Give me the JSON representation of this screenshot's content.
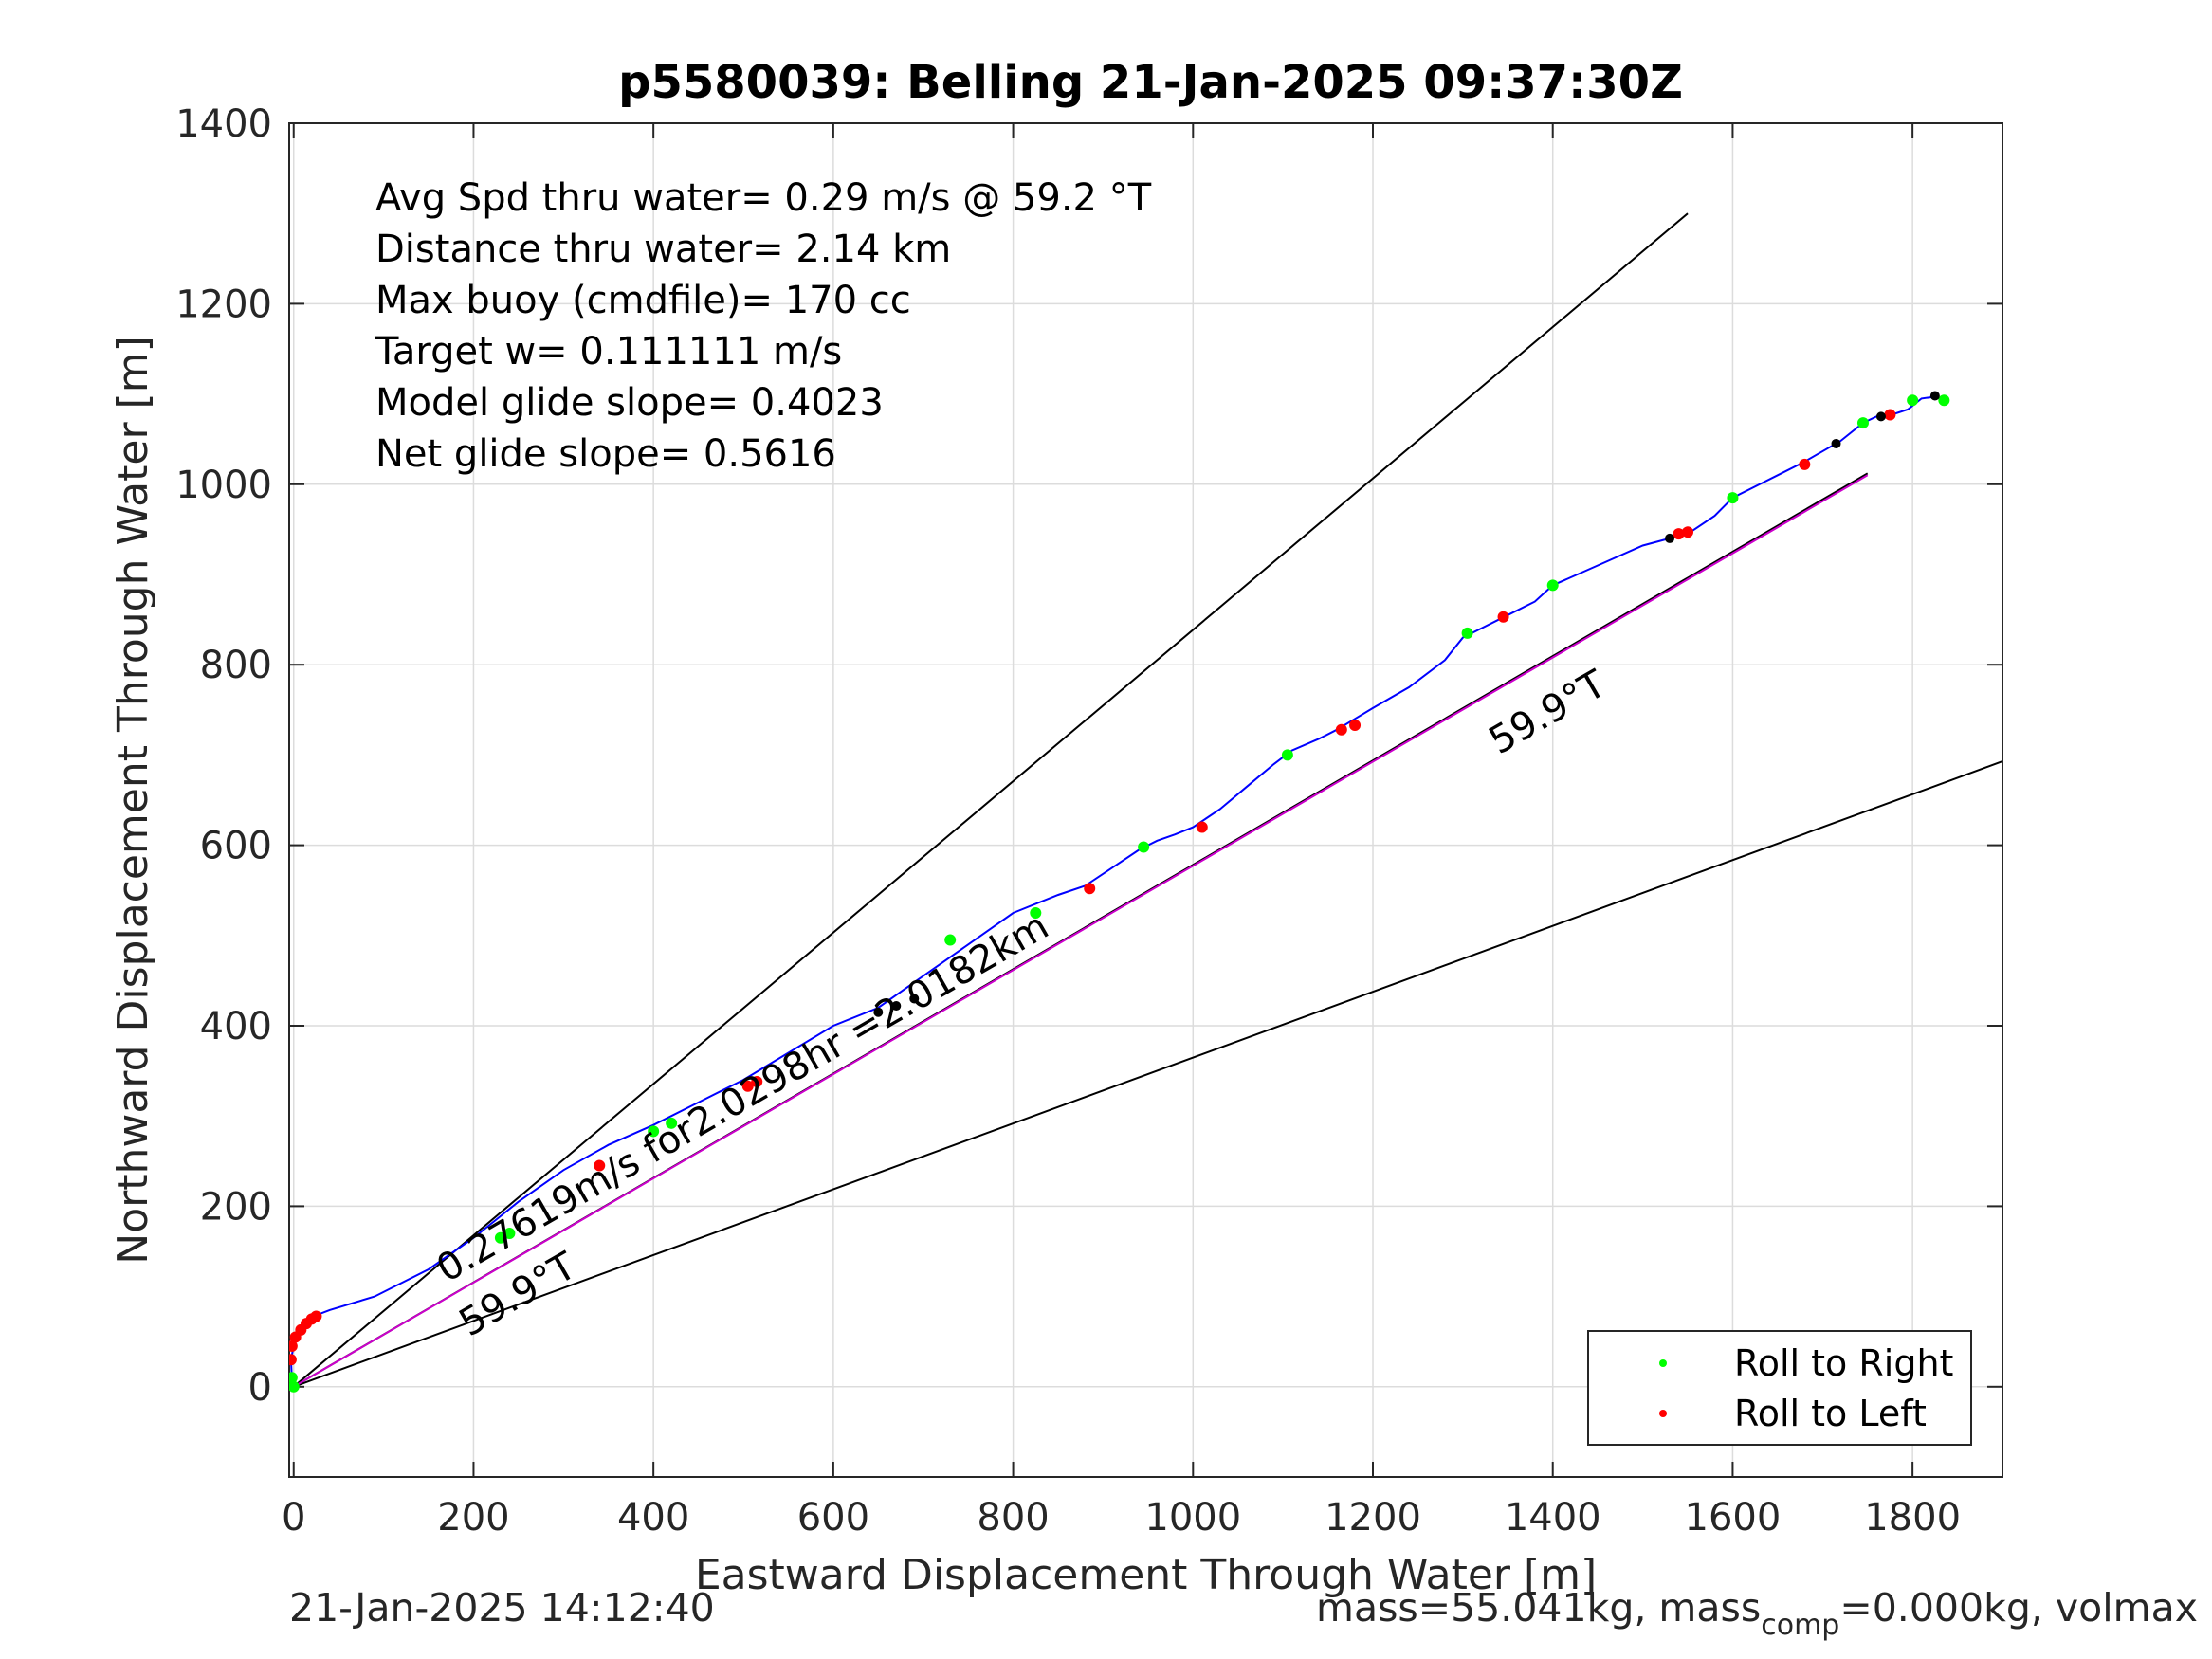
{
  "chart_data": {
    "type": "line",
    "title": "p5580039: Belling 21-Jan-2025 09:37:30Z",
    "xlabel": "Eastward Displacement Through Water [m]",
    "ylabel": "Northward Displacement Through Water [m]",
    "xlim": [
      -5,
      1900
    ],
    "ylim": [
      -100,
      1400
    ],
    "xticks": [
      0,
      200,
      400,
      600,
      800,
      1000,
      1200,
      1400,
      1600,
      1800
    ],
    "yticks": [
      0,
      200,
      400,
      600,
      800,
      1000,
      1200,
      1400
    ],
    "grid": true,
    "legend_position": "bottom-right",
    "annotations": [
      "Avg Spd thru water=  0.29 m/s @  59.2 °T",
      "Distance thru water=  2.14 km",
      "Max buoy (cmdfile)= 170 cc",
      "Target w= 0.111111 m/s",
      "Model glide slope= 0.4023",
      "Net glide slope= 0.5616"
    ],
    "heading_label_upper": "59.9°T",
    "heading_label_lower": "59.9°T",
    "drift_label": "0.27619m/s for2.0298hr =2.0182km",
    "series": [
      {
        "name": "track",
        "color": "#0000ff",
        "x": [
          0,
          -2,
          -3,
          0,
          6,
          14,
          22,
          40,
          90,
          150,
          200,
          250,
          300,
          350,
          400,
          450,
          500,
          550,
          600,
          650,
          700,
          750,
          800,
          850,
          880,
          910,
          940,
          960,
          980,
          1000,
          1030,
          1060,
          1090,
          1110,
          1140,
          1160,
          1180,
          1200,
          1240,
          1280,
          1300,
          1320,
          1350,
          1380,
          1400,
          1450,
          1500,
          1530,
          1550,
          1580,
          1600,
          1650,
          1680,
          1720,
          1745,
          1760,
          1780,
          1795,
          1810,
          1825,
          1835
        ],
        "y": [
          0,
          10,
          30,
          45,
          58,
          70,
          78,
          85,
          100,
          130,
          165,
          205,
          240,
          268,
          290,
          315,
          340,
          370,
          400,
          420,
          455,
          490,
          525,
          545,
          555,
          575,
          595,
          605,
          612,
          620,
          640,
          665,
          690,
          705,
          718,
          728,
          740,
          752,
          775,
          805,
          830,
          840,
          855,
          870,
          888,
          910,
          932,
          940,
          945,
          965,
          985,
          1010,
          1025,
          1048,
          1068,
          1075,
          1078,
          1083,
          1095,
          1097,
          1093
        ]
      },
      {
        "name": "Roll to Right",
        "color": "#00ff00",
        "x": [
          0,
          -2,
          230,
          240,
          400,
          420,
          730,
          825,
          945,
          1105,
          1305,
          1400,
          1600,
          1745,
          1800,
          1835
        ],
        "y": [
          0,
          10,
          165,
          170,
          283,
          292,
          495,
          525,
          598,
          700,
          835,
          888,
          985,
          1068,
          1093,
          1093
        ]
      },
      {
        "name": "Roll to Left",
        "color": "#ff0000",
        "x": [
          -3,
          -2,
          2,
          8,
          14,
          20,
          25,
          340,
          505,
          515,
          885,
          1010,
          1165,
          1180,
          1345,
          1540,
          1550,
          1680,
          1775
        ],
        "y": [
          30,
          45,
          55,
          63,
          70,
          75,
          78,
          245,
          333,
          338,
          552,
          620,
          728,
          733,
          853,
          945,
          947,
          1022,
          1077
        ]
      },
      {
        "name": "black markers",
        "color": "#000000",
        "x": [
          650,
          670,
          690,
          1530,
          1715,
          1765,
          1825
        ],
        "y": [
          415,
          422,
          430,
          940,
          1045,
          1075,
          1098
        ]
      },
      {
        "name": "magenta heading line",
        "color": "#cc00cc",
        "x": [
          0,
          1750
        ],
        "y": [
          0,
          1010
        ]
      },
      {
        "name": "heading line",
        "color": "#000000",
        "x": [
          0,
          1750
        ],
        "y": [
          0,
          1012
        ]
      },
      {
        "name": "upper bound line",
        "color": "#000000",
        "x": [
          0,
          1550
        ],
        "y": [
          0,
          1300
        ]
      },
      {
        "name": "lower bound line",
        "color": "#000000",
        "x": [
          0,
          1900
        ],
        "y": [
          0,
          693
        ]
      }
    ]
  },
  "legend": {
    "right_label": "Roll to Right",
    "left_label": "Roll to Left",
    "right_color": "#00ff00",
    "left_color": "#ff0000"
  },
  "footer": {
    "timestamp": "21-Jan-2025 14:12:40",
    "mass_text": "mass=55.041kg, mass",
    "mass_sub": "comp",
    "mass_tail": "=0.000kg, volmax"
  }
}
